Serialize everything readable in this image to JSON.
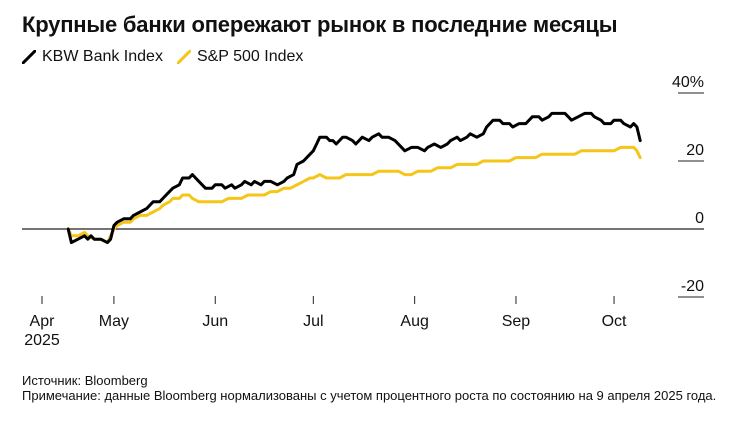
{
  "title": "Крупные банки опережают рынок в последние месяцы",
  "legend": [
    {
      "label": "KBW Bank Index",
      "color": "#000000"
    },
    {
      "label": "S&P 500 Index",
      "color": "#f5c518"
    }
  ],
  "footer": {
    "source": "Источник: Bloomberg",
    "note": "Примечание: данные Bloomberg нормализованы с учетом процентного роста по состоянию на 9 апреля 2025 года."
  },
  "chart_data": {
    "type": "line",
    "title": "Крупные банки опережают рынок в последние месяцы",
    "xlabel": "",
    "ylabel": "",
    "ylim": [
      -20,
      45
    ],
    "y_ticks": [
      {
        "value": 40,
        "label": "40%"
      },
      {
        "value": 20,
        "label": "20"
      },
      {
        "value": 0,
        "label": "0"
      },
      {
        "value": -20,
        "label": "-20"
      }
    ],
    "x_ticks": [
      {
        "value": 0,
        "label": "Apr",
        "sublabel": "2025"
      },
      {
        "value": 22,
        "label": "May"
      },
      {
        "value": 53,
        "label": "Jun"
      },
      {
        "value": 83,
        "label": "Jul"
      },
      {
        "value": 114,
        "label": "Aug"
      },
      {
        "value": 145,
        "label": "Sep"
      },
      {
        "value": 175,
        "label": "Oct"
      }
    ],
    "xlim": [
      0,
      186
    ],
    "x_note": "days since April 1, 2025",
    "grid": true,
    "series": [
      {
        "name": "KBW Bank Index",
        "color": "#000000",
        "points": [
          [
            8,
            0
          ],
          [
            9,
            -4
          ],
          [
            11,
            -3
          ],
          [
            13,
            -2
          ],
          [
            14,
            -3
          ],
          [
            15,
            -2
          ],
          [
            16,
            -3
          ],
          [
            18,
            -3
          ],
          [
            20,
            -4
          ],
          [
            21,
            -3
          ],
          [
            22,
            1
          ],
          [
            23,
            2
          ],
          [
            25,
            3
          ],
          [
            27,
            3
          ],
          [
            28,
            4
          ],
          [
            30,
            5
          ],
          [
            32,
            6
          ],
          [
            34,
            8
          ],
          [
            36,
            8
          ],
          [
            37,
            9
          ],
          [
            39,
            11
          ],
          [
            40,
            12
          ],
          [
            42,
            13
          ],
          [
            43,
            15
          ],
          [
            45,
            15
          ],
          [
            46,
            16
          ],
          [
            47,
            15
          ],
          [
            48,
            14
          ],
          [
            50,
            12
          ],
          [
            52,
            12
          ],
          [
            53,
            13
          ],
          [
            55,
            13
          ],
          [
            56,
            12
          ],
          [
            58,
            13
          ],
          [
            59,
            12
          ],
          [
            61,
            13
          ],
          [
            62,
            14
          ],
          [
            64,
            13
          ],
          [
            65,
            14
          ],
          [
            67,
            13
          ],
          [
            68,
            14
          ],
          [
            70,
            14
          ],
          [
            72,
            13
          ],
          [
            74,
            14
          ],
          [
            75,
            15
          ],
          [
            77,
            16
          ],
          [
            78,
            19
          ],
          [
            80,
            20
          ],
          [
            81,
            21
          ],
          [
            83,
            23
          ],
          [
            84,
            25
          ],
          [
            85,
            27
          ],
          [
            87,
            27
          ],
          [
            88,
            26
          ],
          [
            89,
            26
          ],
          [
            90,
            25
          ],
          [
            92,
            27
          ],
          [
            93,
            27
          ],
          [
            95,
            26
          ],
          [
            96,
            25
          ],
          [
            98,
            27
          ],
          [
            100,
            26
          ],
          [
            101,
            27
          ],
          [
            103,
            28
          ],
          [
            104,
            27
          ],
          [
            106,
            27
          ],
          [
            108,
            26
          ],
          [
            110,
            24
          ],
          [
            111,
            23
          ],
          [
            113,
            24
          ],
          [
            115,
            24
          ],
          [
            117,
            23
          ],
          [
            118,
            24
          ],
          [
            120,
            25
          ],
          [
            122,
            24
          ],
          [
            124,
            25
          ],
          [
            125,
            26
          ],
          [
            127,
            27
          ],
          [
            128,
            26
          ],
          [
            130,
            27
          ],
          [
            131,
            28
          ],
          [
            133,
            27
          ],
          [
            135,
            28
          ],
          [
            136,
            30
          ],
          [
            138,
            32
          ],
          [
            140,
            32
          ],
          [
            141,
            31
          ],
          [
            143,
            31
          ],
          [
            144,
            30
          ],
          [
            146,
            31
          ],
          [
            148,
            31
          ],
          [
            150,
            33
          ],
          [
            152,
            33
          ],
          [
            153,
            32
          ],
          [
            155,
            33
          ],
          [
            156,
            34
          ],
          [
            158,
            34
          ],
          [
            160,
            34
          ],
          [
            161,
            33
          ],
          [
            162,
            32
          ],
          [
            164,
            33
          ],
          [
            166,
            34
          ],
          [
            168,
            34
          ],
          [
            169,
            33
          ],
          [
            171,
            32
          ],
          [
            172,
            31
          ],
          [
            174,
            31
          ],
          [
            175,
            32
          ],
          [
            177,
            32
          ],
          [
            178,
            31
          ],
          [
            180,
            30
          ],
          [
            181,
            31
          ],
          [
            182,
            30
          ],
          [
            183,
            26
          ]
        ]
      },
      {
        "name": "S&P 500 Index",
        "color": "#f5c518",
        "points": [
          [
            8,
            0
          ],
          [
            9,
            -2
          ],
          [
            11,
            -2
          ],
          [
            13,
            -1
          ],
          [
            14,
            -2
          ],
          [
            16,
            -3
          ],
          [
            18,
            -3
          ],
          [
            20,
            -4
          ],
          [
            21,
            -2
          ],
          [
            22,
            0
          ],
          [
            23,
            1
          ],
          [
            25,
            2
          ],
          [
            27,
            2
          ],
          [
            28,
            3
          ],
          [
            30,
            4
          ],
          [
            32,
            4
          ],
          [
            34,
            5
          ],
          [
            36,
            6
          ],
          [
            37,
            7
          ],
          [
            39,
            8
          ],
          [
            40,
            9
          ],
          [
            42,
            9
          ],
          [
            43,
            10
          ],
          [
            45,
            10
          ],
          [
            46,
            9
          ],
          [
            48,
            8
          ],
          [
            50,
            8
          ],
          [
            52,
            8
          ],
          [
            53,
            8
          ],
          [
            55,
            8
          ],
          [
            57,
            9
          ],
          [
            59,
            9
          ],
          [
            61,
            9
          ],
          [
            63,
            10
          ],
          [
            64,
            10
          ],
          [
            66,
            10
          ],
          [
            68,
            10
          ],
          [
            70,
            11
          ],
          [
            72,
            11
          ],
          [
            74,
            12
          ],
          [
            76,
            12
          ],
          [
            78,
            13
          ],
          [
            80,
            14
          ],
          [
            82,
            15
          ],
          [
            83,
            15
          ],
          [
            85,
            16
          ],
          [
            87,
            15
          ],
          [
            89,
            15
          ],
          [
            91,
            15
          ],
          [
            93,
            16
          ],
          [
            95,
            16
          ],
          [
            97,
            16
          ],
          [
            99,
            16
          ],
          [
            101,
            16
          ],
          [
            103,
            17
          ],
          [
            105,
            17
          ],
          [
            107,
            17
          ],
          [
            109,
            17
          ],
          [
            111,
            16
          ],
          [
            113,
            16
          ],
          [
            115,
            17
          ],
          [
            117,
            17
          ],
          [
            119,
            17
          ],
          [
            121,
            18
          ],
          [
            123,
            18
          ],
          [
            125,
            18
          ],
          [
            127,
            19
          ],
          [
            129,
            19
          ],
          [
            131,
            19
          ],
          [
            133,
            19
          ],
          [
            135,
            20
          ],
          [
            137,
            20
          ],
          [
            139,
            20
          ],
          [
            141,
            20
          ],
          [
            143,
            20
          ],
          [
            145,
            21
          ],
          [
            147,
            21
          ],
          [
            149,
            21
          ],
          [
            151,
            21
          ],
          [
            153,
            22
          ],
          [
            155,
            22
          ],
          [
            157,
            22
          ],
          [
            159,
            22
          ],
          [
            161,
            22
          ],
          [
            163,
            22
          ],
          [
            165,
            23
          ],
          [
            167,
            23
          ],
          [
            169,
            23
          ],
          [
            171,
            23
          ],
          [
            173,
            23
          ],
          [
            175,
            23
          ],
          [
            177,
            24
          ],
          [
            179,
            24
          ],
          [
            181,
            24
          ],
          [
            182,
            23
          ],
          [
            183,
            21
          ]
        ]
      }
    ]
  }
}
